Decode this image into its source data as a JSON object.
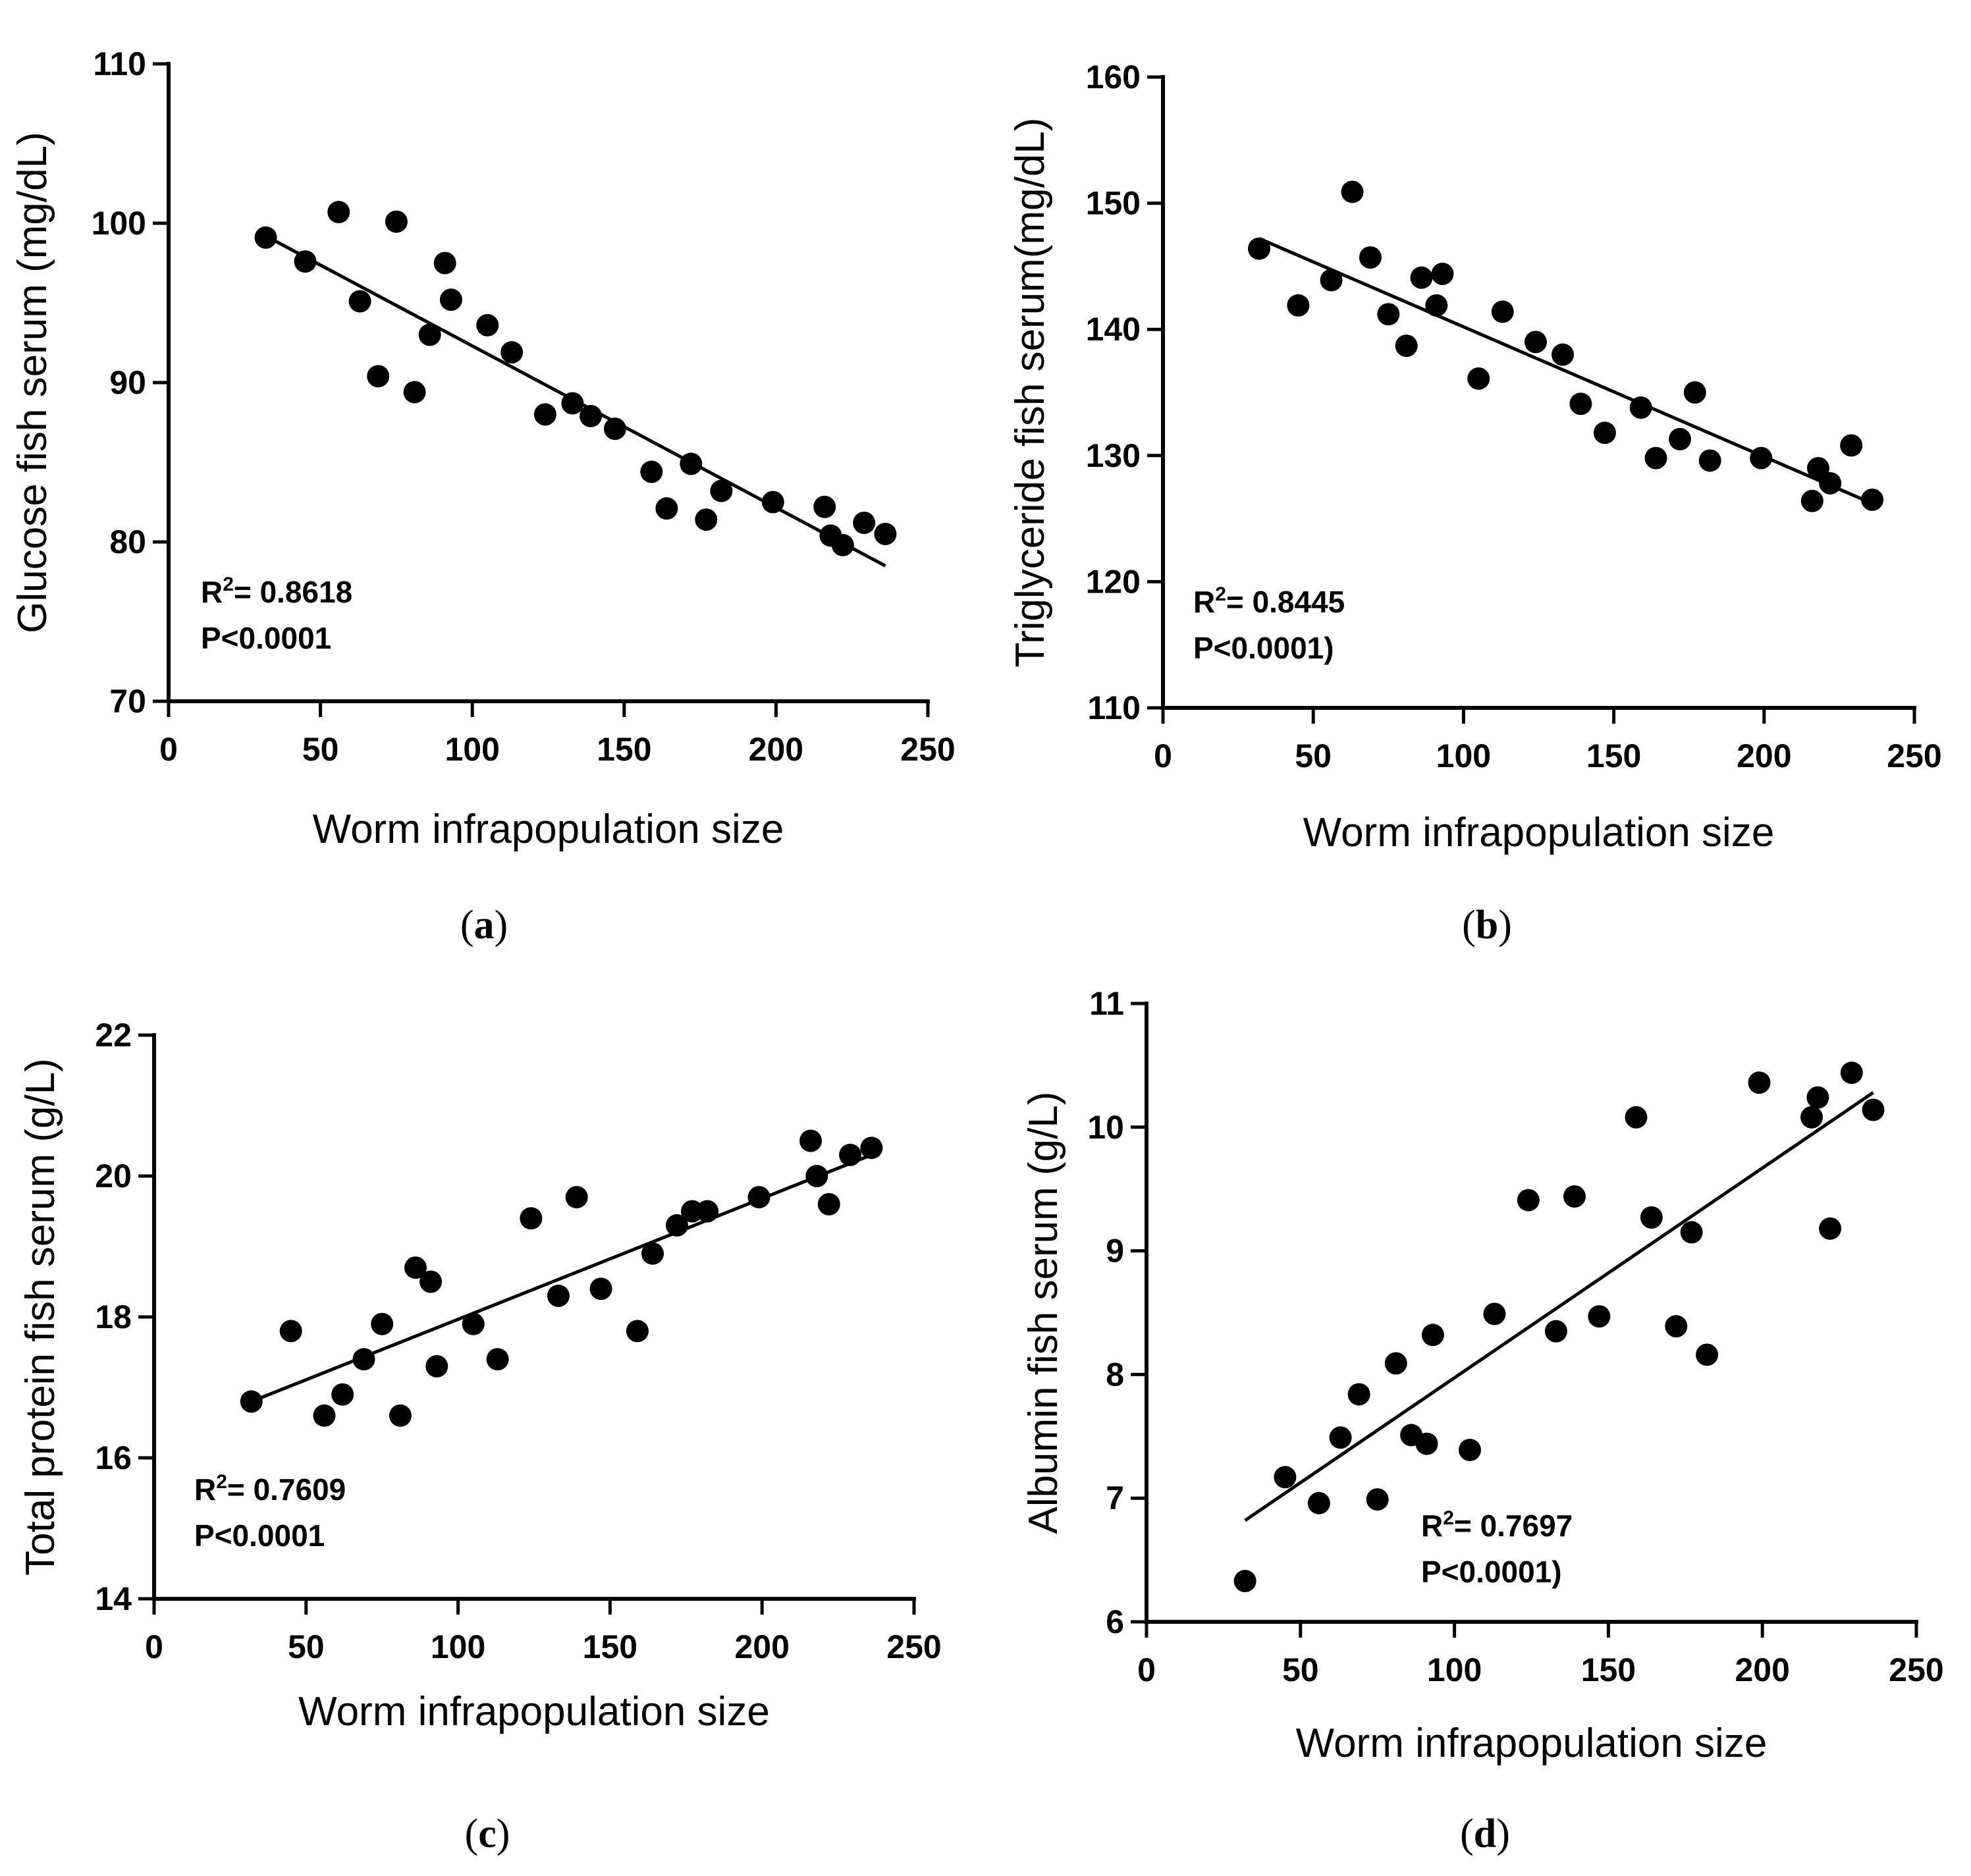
{
  "chart_data": [
    {
      "panel": "a",
      "type": "scatter",
      "title": "",
      "xlabel": "Worm infrapopulation size",
      "ylabel": "Glucose fish serum (mg/dL)",
      "xlim": [
        0,
        250
      ],
      "ylim": [
        70,
        110
      ],
      "xticks": [
        0,
        50,
        100,
        150,
        200,
        250
      ],
      "yticks": [
        70,
        80,
        90,
        100,
        110
      ],
      "r2_text": "R",
      "r2_sup": "2",
      "r2_value": "= 0.8618",
      "p_text": "P<0.0001",
      "panel_label_open": "(",
      "panel_label_letter": "a",
      "panel_label_close": ")",
      "trend": {
        "x": [
          32,
          236
        ],
        "y": [
          99.2,
          78.5
        ]
      },
      "points": {
        "x": [
          32,
          45,
          56,
          63,
          69,
          75,
          81,
          86,
          91,
          93,
          105,
          113,
          124,
          133,
          139,
          147,
          159,
          164,
          172,
          177,
          182,
          199,
          216,
          218,
          222,
          229,
          236
        ],
        "y": [
          99.1,
          97.6,
          100.7,
          95.1,
          90.4,
          100.1,
          89.4,
          93.0,
          97.5,
          95.2,
          93.6,
          91.9,
          88.0,
          88.7,
          87.9,
          87.1,
          84.4,
          82.1,
          84.9,
          81.4,
          83.2,
          82.5,
          82.2,
          80.4,
          79.8,
          81.2,
          80.5
        ]
      }
    },
    {
      "panel": "b",
      "type": "scatter",
      "title": "",
      "xlabel": "Worm infrapopulation size",
      "ylabel": "Triglyceride fish serum(mg/dL)",
      "xlim": [
        0,
        250
      ],
      "ylim": [
        110,
        160
      ],
      "xticks": [
        0,
        50,
        100,
        150,
        200,
        250
      ],
      "yticks": [
        110,
        120,
        130,
        140,
        150,
        160
      ],
      "r2_text": "R",
      "r2_sup": "2",
      "r2_value": "= 0.8445",
      "p_text": "P<0.0001)",
      "panel_label_open": "(",
      "panel_label_letter": "b",
      "panel_label_close": ")",
      "trend": {
        "x": [
          32,
          236
        ],
        "y": [
          147.2,
          126.2
        ]
      },
      "points": {
        "x": [
          32,
          45,
          56,
          63,
          69,
          75,
          81,
          86,
          91,
          93,
          105,
          113,
          124,
          133,
          139,
          147,
          159,
          164,
          172,
          177,
          182,
          199,
          216,
          218,
          222,
          229,
          236
        ],
        "y": [
          146.4,
          141.9,
          143.9,
          150.9,
          145.7,
          141.2,
          138.7,
          144.1,
          141.9,
          144.4,
          136.1,
          141.4,
          139.0,
          138.0,
          134.1,
          131.8,
          133.8,
          129.8,
          131.3,
          135.0,
          129.6,
          129.8,
          126.4,
          129.0,
          127.8,
          130.8,
          126.5
        ]
      }
    },
    {
      "panel": "c",
      "type": "scatter",
      "title": "",
      "xlabel": "Worm infrapopulation size",
      "ylabel": "Total protein fish serum (g/L)",
      "xlim": [
        0,
        250
      ],
      "ylim": [
        14,
        22
      ],
      "xticks": [
        0,
        50,
        100,
        150,
        200,
        250
      ],
      "yticks": [
        14,
        16,
        18,
        20,
        22
      ],
      "r2_text": "R",
      "r2_sup": "2",
      "r2_value": "= 0.7609",
      "p_text": "P<0.0001",
      "panel_label_open": "(",
      "panel_label_letter": "c",
      "panel_label_close": ")",
      "trend": {
        "x": [
          32,
          236
        ],
        "y": [
          16.8,
          20.3
        ]
      },
      "points": {
        "x": [
          32,
          45,
          56,
          62,
          69,
          75,
          81,
          86,
          91,
          93,
          105,
          113,
          124,
          133,
          139,
          147,
          159,
          164,
          172,
          177,
          182,
          199,
          216,
          218,
          222,
          229,
          236
        ],
        "y": [
          16.8,
          17.8,
          16.6,
          16.9,
          17.4,
          17.9,
          16.6,
          18.7,
          18.5,
          17.3,
          17.9,
          17.4,
          19.4,
          18.3,
          19.7,
          18.4,
          17.8,
          18.9,
          19.3,
          19.5,
          19.5,
          19.7,
          20.5,
          20.0,
          19.6,
          20.3,
          20.4
        ]
      }
    },
    {
      "panel": "d",
      "type": "scatter",
      "title": "",
      "xlabel": "Worm infrapopulation size",
      "ylabel": "Albumin fish serum (g/L)",
      "xlim": [
        0,
        250
      ],
      "ylim": [
        6,
        11
      ],
      "xticks": [
        0,
        50,
        100,
        150,
        200,
        250
      ],
      "yticks": [
        6,
        7,
        8,
        9,
        10,
        11
      ],
      "r2_text": "R",
      "r2_sup": "2",
      "r2_value": "= 0.7697",
      "p_text": "P<0.0001)",
      "panel_label_open": "(",
      "panel_label_letter": "d",
      "panel_label_close": ")",
      "trend": {
        "x": [
          32,
          236
        ],
        "y": [
          6.82,
          10.28
        ]
      },
      "points": {
        "x": [
          32,
          45,
          56,
          63,
          69,
          75,
          81,
          86,
          91,
          93,
          105,
          113,
          124,
          133,
          139,
          147,
          159,
          164,
          172,
          177,
          182,
          199,
          216,
          218,
          222,
          229,
          236
        ],
        "y": [
          6.33,
          7.17,
          6.96,
          7.49,
          7.84,
          6.99,
          8.09,
          7.51,
          7.44,
          8.32,
          7.39,
          8.49,
          9.41,
          8.35,
          9.44,
          8.47,
          10.08,
          9.27,
          8.39,
          9.15,
          8.16,
          10.36,
          10.08,
          10.24,
          9.18,
          10.44,
          10.14
        ]
      }
    }
  ]
}
